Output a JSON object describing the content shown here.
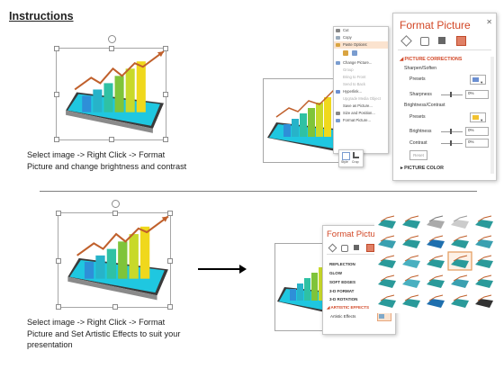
{
  "page": {
    "title": "Instructions"
  },
  "step1": {
    "text_lines": [
      "Select image -> Right Click -> Format",
      "Picture and change brightness and contrast"
    ]
  },
  "step2": {
    "text_lines": [
      "Select image -> Right Click -> Format",
      "Picture and Set Artistic Effects to suit your",
      "presentation"
    ]
  },
  "context_menu": {
    "items": [
      "Cut",
      "Copy",
      "Paste Options:",
      "",
      "Change Picture...",
      "Group",
      "Bring to Front",
      "Send to Back",
      "Hyperlink...",
      "Upgrade Media Object",
      "Save as Picture...",
      "Size and Position...",
      "Format Picture..."
    ],
    "mini_labels": [
      "Style",
      "Crop"
    ]
  },
  "format_picture_1": {
    "title": "Format Picture",
    "section_corrections": "PICTURE CORRECTIONS",
    "sharpen_label": "Sharpen/Soften",
    "presets_label": "Presets",
    "sharpness_label": "Sharpness",
    "sharpness_value": "0%",
    "bc_label": "Brightness/Contrast",
    "presets2_label": "Presets",
    "brightness_label": "Brightness",
    "brightness_value": "0%",
    "contrast_label": "Contrast",
    "contrast_value": "0%",
    "reset_label": "Reset",
    "section_color": "PICTURE COLOR"
  },
  "format_picture_2": {
    "title": "Format Picture",
    "sections": [
      "REFLECTION",
      "GLOW",
      "SOFT EDGES",
      "3-D FORMAT",
      "3-D ROTATION",
      "ARTISTIC EFFECTS"
    ],
    "artistic_label": "Artistic Effects"
  },
  "colors": {
    "accent": "#d24726",
    "bar_colors": [
      "#2e8fd8",
      "#27b3c9",
      "#2fc1a4",
      "#7fc43a",
      "#c8d92a",
      "#f0d81c"
    ],
    "trend": "#c0602c"
  }
}
